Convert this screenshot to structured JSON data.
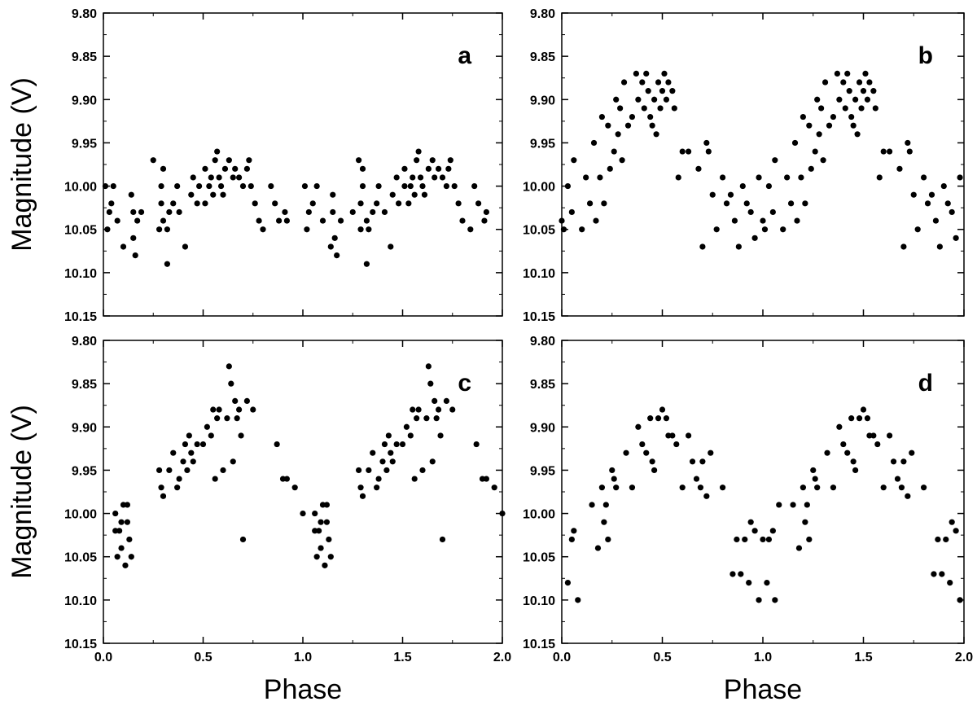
{
  "figure": {
    "ylabel": "Magnitude (V)",
    "xlabel": "Phase"
  },
  "chart_data": [
    {
      "type": "scatter",
      "panel_label": "a",
      "xlim": [
        0.0,
        2.0
      ],
      "ylim": [
        9.8,
        10.15
      ],
      "y_inverted": true,
      "xticks": [
        "0.0",
        "0.5",
        "1.0",
        "1.5",
        "2.0"
      ],
      "yticks": [
        "9.80",
        "9.85",
        "9.90",
        "9.95",
        "10.00",
        "10.05",
        "10.10",
        "10.15"
      ],
      "ylabel": "Magnitude (V)",
      "xlabel": "",
      "show_x_tick_labels": false,
      "x": [
        0.01,
        0.02,
        0.03,
        0.04,
        0.05,
        0.07,
        0.1,
        0.14,
        0.15,
        0.15,
        0.16,
        0.17,
        0.19,
        0.25,
        0.28,
        0.29,
        0.29,
        0.3,
        0.3,
        0.32,
        0.32,
        0.33,
        0.35,
        0.37,
        0.38,
        0.41,
        0.44,
        0.45,
        0.47,
        0.48,
        0.51,
        0.51,
        0.53,
        0.54,
        0.55,
        0.56,
        0.57,
        0.58,
        0.59,
        0.6,
        0.61,
        0.63,
        0.65,
        0.66,
        0.68,
        0.7,
        0.72,
        0.73,
        0.74,
        0.76,
        0.78,
        0.8,
        0.84,
        0.86,
        0.88,
        0.91,
        0.92,
        1.01,
        1.02,
        1.03,
        1.05,
        1.07,
        1.1,
        1.14,
        1.15,
        1.15,
        1.16,
        1.17,
        1.19,
        1.25,
        1.28,
        1.29,
        1.29,
        1.3,
        1.3,
        1.32,
        1.32,
        1.33,
        1.35,
        1.37,
        1.38,
        1.41,
        1.44,
        1.45,
        1.47,
        1.48,
        1.51,
        1.51,
        1.53,
        1.54,
        1.55,
        1.56,
        1.57,
        1.58,
        1.59,
        1.6,
        1.61,
        1.63,
        1.65,
        1.66,
        1.68,
        1.7,
        1.72,
        1.73,
        1.74,
        1.76,
        1.78,
        1.8,
        1.84,
        1.86,
        1.88,
        1.91,
        1.92
      ],
      "y": [
        10.0,
        10.05,
        10.03,
        10.02,
        10.0,
        10.04,
        10.07,
        10.01,
        10.03,
        10.06,
        10.08,
        10.04,
        10.03,
        9.97,
        10.05,
        10.02,
        10.0,
        9.98,
        10.04,
        10.09,
        10.05,
        10.03,
        10.02,
        10.0,
        10.03,
        10.07,
        10.01,
        9.99,
        10.02,
        10.0,
        9.98,
        10.02,
        10.0,
        9.99,
        10.01,
        9.97,
        9.96,
        9.99,
        10.0,
        10.01,
        9.98,
        9.97,
        9.99,
        9.98,
        9.99,
        10.0,
        9.98,
        9.97,
        10.0,
        10.02,
        10.04,
        10.05,
        10.0,
        10.02,
        10.04,
        10.03,
        10.04,
        10.0,
        10.05,
        10.03,
        10.02,
        10.0,
        10.04,
        10.07,
        10.01,
        10.03,
        10.06,
        10.08,
        10.04,
        10.03,
        9.97,
        10.05,
        10.02,
        10.0,
        9.98,
        10.04,
        10.09,
        10.05,
        10.03,
        10.02,
        10.0,
        10.03,
        10.07,
        10.01,
        9.99,
        10.02,
        10.0,
        9.98,
        10.02,
        10.0,
        9.99,
        10.01,
        9.97,
        9.96,
        9.99,
        10.0,
        10.01,
        9.98,
        9.97,
        9.99,
        9.98,
        9.99,
        10.0,
        9.98,
        9.97,
        10.0,
        10.02,
        10.04,
        10.05,
        10.0,
        10.02,
        10.04,
        10.03
      ]
    },
    {
      "type": "scatter",
      "panel_label": "b",
      "xlim": [
        0.0,
        2.0
      ],
      "ylim": [
        9.8,
        10.15
      ],
      "y_inverted": true,
      "xticks": [
        "0.0",
        "0.5",
        "1.0",
        "1.5",
        "2.0"
      ],
      "yticks": [
        "9.80",
        "9.85",
        "9.90",
        "9.95",
        "10.00",
        "10.05",
        "10.10",
        "10.15"
      ],
      "ylabel": "",
      "xlabel": "",
      "show_x_tick_labels": false,
      "x": [
        0.0,
        0.01,
        0.03,
        0.05,
        0.06,
        0.1,
        0.12,
        0.14,
        0.16,
        0.17,
        0.19,
        0.2,
        0.21,
        0.23,
        0.24,
        0.26,
        0.27,
        0.28,
        0.29,
        0.3,
        0.31,
        0.33,
        0.35,
        0.37,
        0.38,
        0.4,
        0.41,
        0.42,
        0.43,
        0.44,
        0.45,
        0.46,
        0.47,
        0.48,
        0.49,
        0.5,
        0.51,
        0.52,
        0.53,
        0.55,
        0.56,
        0.58,
        0.6,
        0.63,
        0.68,
        0.7,
        0.72,
        0.73,
        0.75,
        0.77,
        0.8,
        0.82,
        0.84,
        0.86,
        0.88,
        0.9,
        0.92,
        0.94,
        0.96,
        0.98,
        1.0,
        1.01,
        1.03,
        1.05,
        1.06,
        1.1,
        1.12,
        1.14,
        1.16,
        1.17,
        1.19,
        1.2,
        1.21,
        1.23,
        1.24,
        1.26,
        1.27,
        1.28,
        1.29,
        1.3,
        1.31,
        1.33,
        1.35,
        1.37,
        1.38,
        1.4,
        1.41,
        1.42,
        1.43,
        1.44,
        1.45,
        1.46,
        1.47,
        1.48,
        1.49,
        1.5,
        1.51,
        1.52,
        1.53,
        1.55,
        1.56,
        1.58,
        1.6,
        1.63,
        1.68,
        1.7,
        1.72,
        1.73,
        1.75,
        1.77,
        1.8,
        1.82,
        1.84,
        1.86,
        1.88,
        1.9,
        1.92,
        1.94,
        1.96,
        1.98
      ],
      "y": [
        10.04,
        10.05,
        10.0,
        10.03,
        9.97,
        10.05,
        9.99,
        10.02,
        9.95,
        10.04,
        9.99,
        9.92,
        10.02,
        9.93,
        9.98,
        9.96,
        9.9,
        9.94,
        9.91,
        9.97,
        9.88,
        9.93,
        9.92,
        9.87,
        9.9,
        9.88,
        9.91,
        9.87,
        9.89,
        9.92,
        9.93,
        9.9,
        9.94,
        9.88,
        9.91,
        9.89,
        9.87,
        9.9,
        9.88,
        9.89,
        9.91,
        9.99,
        9.96,
        9.96,
        9.98,
        10.07,
        9.95,
        9.96,
        10.01,
        10.05,
        9.99,
        10.02,
        10.01,
        10.04,
        10.07,
        10.0,
        10.02,
        10.03,
        10.06,
        9.99,
        10.04,
        10.05,
        10.0,
        10.03,
        9.97,
        10.05,
        9.99,
        10.02,
        9.95,
        10.04,
        9.99,
        9.92,
        10.02,
        9.93,
        9.98,
        9.96,
        9.9,
        9.94,
        9.91,
        9.97,
        9.88,
        9.93,
        9.92,
        9.87,
        9.9,
        9.88,
        9.91,
        9.87,
        9.89,
        9.92,
        9.93,
        9.9,
        9.94,
        9.88,
        9.91,
        9.89,
        9.87,
        9.9,
        9.88,
        9.89,
        9.91,
        9.99,
        9.96,
        9.96,
        9.98,
        10.07,
        9.95,
        9.96,
        10.01,
        10.05,
        9.99,
        10.02,
        10.01,
        10.04,
        10.07,
        10.0,
        10.02,
        10.03,
        10.06,
        9.99
      ]
    },
    {
      "type": "scatter",
      "panel_label": "c",
      "xlim": [
        0.0,
        2.0
      ],
      "ylim": [
        9.8,
        10.15
      ],
      "y_inverted": true,
      "xticks": [
        "0.0",
        "0.5",
        "1.0",
        "1.5",
        "2.0"
      ],
      "yticks": [
        "9.80",
        "9.85",
        "9.90",
        "9.95",
        "10.00",
        "10.05",
        "10.10",
        "10.15"
      ],
      "ylabel": "Magnitude (V)",
      "xlabel": "Phase",
      "show_x_tick_labels": true,
      "x": [
        0.06,
        0.07,
        0.08,
        0.09,
        0.1,
        0.11,
        0.12,
        0.13,
        0.14,
        0.06,
        0.09,
        0.12,
        0.28,
        0.29,
        0.3,
        0.33,
        0.35,
        0.37,
        0.38,
        0.4,
        0.41,
        0.42,
        0.43,
        0.44,
        0.45,
        0.47,
        0.5,
        0.52,
        0.54,
        0.55,
        0.56,
        0.57,
        0.58,
        0.6,
        0.62,
        0.63,
        0.64,
        0.65,
        0.66,
        0.67,
        0.68,
        0.69,
        0.7,
        0.72,
        0.75,
        0.87,
        0.9,
        0.92,
        0.96,
        1.0,
        1.06,
        1.07,
        1.08,
        1.09,
        1.1,
        1.11,
        1.12,
        1.13,
        1.14,
        1.06,
        1.09,
        1.12,
        1.28,
        1.29,
        1.3,
        1.33,
        1.35,
        1.37,
        1.38,
        1.4,
        1.41,
        1.42,
        1.43,
        1.44,
        1.45,
        1.47,
        1.5,
        1.52,
        1.54,
        1.55,
        1.56,
        1.57,
        1.58,
        1.6,
        1.62,
        1.63,
        1.64,
        1.65,
        1.66,
        1.67,
        1.68,
        1.69,
        1.7,
        1.72,
        1.75,
        1.87,
        1.9,
        1.92,
        1.96,
        2.0
      ],
      "y": [
        10.0,
        10.05,
        10.02,
        10.04,
        9.99,
        10.06,
        10.01,
        10.03,
        10.05,
        10.02,
        10.01,
        9.99,
        9.95,
        9.97,
        9.98,
        9.95,
        9.93,
        9.97,
        9.96,
        9.94,
        9.92,
        9.95,
        9.91,
        9.93,
        9.94,
        9.92,
        9.92,
        9.9,
        9.91,
        9.88,
        9.96,
        9.89,
        9.88,
        9.95,
        9.89,
        9.83,
        9.85,
        9.94,
        9.87,
        9.89,
        9.88,
        9.91,
        10.03,
        9.87,
        9.88,
        9.92,
        9.96,
        9.96,
        9.97,
        10.0,
        10.0,
        10.05,
        10.02,
        10.04,
        9.99,
        10.06,
        10.01,
        10.03,
        10.05,
        10.02,
        10.01,
        9.99,
        9.95,
        9.97,
        9.98,
        9.95,
        9.93,
        9.97,
        9.96,
        9.94,
        9.92,
        9.95,
        9.91,
        9.93,
        9.94,
        9.92,
        9.92,
        9.9,
        9.91,
        9.88,
        9.96,
        9.89,
        9.88,
        9.95,
        9.89,
        9.83,
        9.85,
        9.94,
        9.87,
        9.89,
        9.88,
        9.91,
        10.03,
        9.87,
        9.88,
        9.92,
        9.96,
        9.96,
        9.97,
        10.0
      ]
    },
    {
      "type": "scatter",
      "panel_label": "d",
      "xlim": [
        0.0,
        2.0
      ],
      "ylim": [
        9.8,
        10.15
      ],
      "y_inverted": true,
      "xticks": [
        "0.0",
        "0.5",
        "1.0",
        "1.5",
        "2.0"
      ],
      "yticks": [
        "9.80",
        "9.85",
        "9.90",
        "9.95",
        "10.00",
        "10.05",
        "10.10",
        "10.15"
      ],
      "ylabel": "",
      "xlabel": "Phase",
      "show_x_tick_labels": true,
      "x": [
        0.03,
        0.05,
        0.06,
        0.08,
        0.15,
        0.18,
        0.2,
        0.21,
        0.22,
        0.23,
        0.25,
        0.26,
        0.27,
        0.32,
        0.35,
        0.38,
        0.4,
        0.42,
        0.44,
        0.45,
        0.46,
        0.48,
        0.5,
        0.52,
        0.53,
        0.55,
        0.57,
        0.6,
        0.63,
        0.65,
        0.67,
        0.69,
        0.7,
        0.72,
        0.74,
        0.8,
        0.85,
        0.87,
        0.89,
        0.91,
        0.93,
        0.94,
        0.96,
        0.98,
        1.0,
        1.02,
        1.03,
        1.05,
        1.06,
        1.08,
        1.15,
        1.18,
        1.2,
        1.21,
        1.22,
        1.23,
        1.25,
        1.26,
        1.27,
        1.32,
        1.35,
        1.38,
        1.4,
        1.42,
        1.44,
        1.45,
        1.46,
        1.48,
        1.5,
        1.52,
        1.53,
        1.55,
        1.57,
        1.6,
        1.63,
        1.65,
        1.67,
        1.69,
        1.7,
        1.72,
        1.74,
        1.8,
        1.85,
        1.87,
        1.89,
        1.91,
        1.93,
        1.94,
        1.96,
        1.98
      ],
      "y": [
        10.08,
        10.03,
        10.02,
        10.1,
        9.99,
        10.04,
        9.97,
        10.01,
        9.99,
        10.03,
        9.95,
        9.96,
        9.97,
        9.93,
        9.97,
        9.9,
        9.92,
        9.93,
        9.89,
        9.94,
        9.95,
        9.89,
        9.88,
        9.89,
        9.91,
        9.91,
        9.92,
        9.97,
        9.91,
        9.94,
        9.96,
        9.97,
        9.94,
        9.98,
        9.93,
        9.97,
        10.07,
        10.03,
        10.07,
        10.03,
        10.08,
        10.01,
        10.02,
        10.1,
        10.03,
        10.08,
        10.03,
        10.02,
        10.1,
        9.99,
        9.99,
        10.04,
        9.97,
        10.01,
        9.99,
        10.03,
        9.95,
        9.96,
        9.97,
        9.93,
        9.97,
        9.9,
        9.92,
        9.93,
        9.89,
        9.94,
        9.95,
        9.89,
        9.88,
        9.89,
        9.91,
        9.91,
        9.92,
        9.97,
        9.91,
        9.94,
        9.96,
        9.97,
        9.94,
        9.98,
        9.93,
        9.97,
        10.07,
        10.03,
        10.07,
        10.03,
        10.08,
        10.01,
        10.02,
        10.1
      ]
    }
  ]
}
